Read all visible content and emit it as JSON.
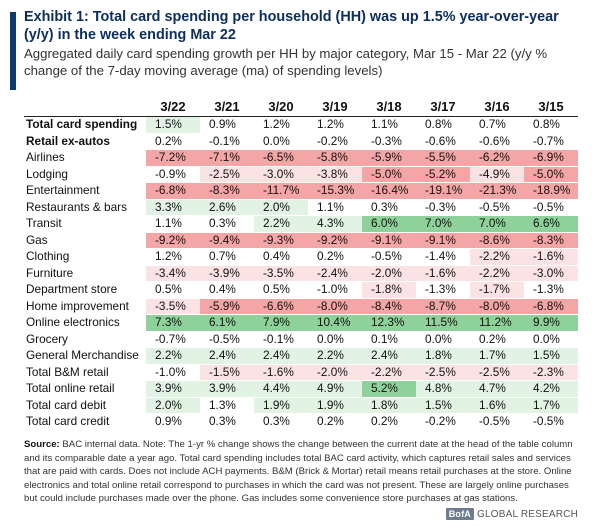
{
  "header": {
    "title": "Exhibit 1: Total card spending per household (HH) was up 1.5% year-over-year (y/y) in the week ending Mar 22",
    "subtitle": "Aggregated daily card spending growth per HH by major category, Mar 15 - Mar 22 (y/y % change of the 7-day moving average (ma) of spending levels)"
  },
  "chart_data": {
    "type": "table",
    "columns": [
      "3/22",
      "3/21",
      "3/20",
      "3/19",
      "3/18",
      "3/17",
      "3/16",
      "3/15"
    ],
    "rows": [
      {
        "label": "Total card spending",
        "bold": true,
        "values": [
          "1.5%",
          "0.9%",
          "1.2%",
          "1.2%",
          "1.1%",
          "0.8%",
          "0.7%",
          "0.8%"
        ]
      },
      {
        "label": "Retail ex-autos",
        "bold": true,
        "values": [
          "0.2%",
          "-0.1%",
          "0.0%",
          "-0.2%",
          "-0.3%",
          "-0.6%",
          "-0.6%",
          "-0.7%"
        ]
      },
      {
        "label": "Airlines",
        "values": [
          "-7.2%",
          "-7.1%",
          "-6.5%",
          "-5.8%",
          "-5.9%",
          "-5.5%",
          "-6.2%",
          "-6.9%"
        ]
      },
      {
        "label": "Lodging",
        "values": [
          "-0.9%",
          "-2.5%",
          "-3.0%",
          "-3.8%",
          "-5.0%",
          "-5.2%",
          "-4.9%",
          "-5.0%"
        ]
      },
      {
        "label": "Entertainment",
        "values": [
          "-6.8%",
          "-8.3%",
          "-11.7%",
          "-15.3%",
          "-16.4%",
          "-19.1%",
          "-21.3%",
          "-18.9%"
        ]
      },
      {
        "label": "Restaurants & bars",
        "values": [
          "3.3%",
          "2.6%",
          "2.0%",
          "1.1%",
          "0.3%",
          "-0.3%",
          "-0.5%",
          "-0.5%"
        ]
      },
      {
        "label": "Transit",
        "values": [
          "1.1%",
          "0.3%",
          "2.2%",
          "4.3%",
          "6.0%",
          "7.0%",
          "7.0%",
          "6.6%"
        ]
      },
      {
        "label": "Gas",
        "values": [
          "-9.2%",
          "-9.4%",
          "-9.3%",
          "-9.2%",
          "-9.1%",
          "-9.1%",
          "-8.6%",
          "-8.3%"
        ]
      },
      {
        "label": "Clothing",
        "values": [
          "1.2%",
          "0.7%",
          "0.4%",
          "0.2%",
          "-0.5%",
          "-1.4%",
          "-2.2%",
          "-1.6%"
        ]
      },
      {
        "label": "Furniture",
        "values": [
          "-3.4%",
          "-3.9%",
          "-3.5%",
          "-2.4%",
          "-2.0%",
          "-1.6%",
          "-2.2%",
          "-3.0%"
        ]
      },
      {
        "label": "Department store",
        "values": [
          "0.5%",
          "0.4%",
          "0.5%",
          "-1.0%",
          "-1.8%",
          "-1.3%",
          "-1.7%",
          "-1.3%"
        ]
      },
      {
        "label": "Home improvement",
        "values": [
          "-3.5%",
          "-5.9%",
          "-6.6%",
          "-8.0%",
          "-8.4%",
          "-8.7%",
          "-8.0%",
          "-6.8%"
        ]
      },
      {
        "label": "Online electronics",
        "values": [
          "7.3%",
          "6.1%",
          "7.9%",
          "10.4%",
          "12.3%",
          "11.5%",
          "11.2%",
          "9.9%"
        ]
      },
      {
        "label": "Grocery",
        "values": [
          "-0.7%",
          "-0.5%",
          "-0.1%",
          "0.0%",
          "0.1%",
          "0.0%",
          "0.2%",
          "0.0%"
        ]
      },
      {
        "label": "General Merchandise",
        "values": [
          "2.2%",
          "2.4%",
          "2.4%",
          "2.2%",
          "2.4%",
          "1.8%",
          "1.7%",
          "1.5%"
        ]
      },
      {
        "label": "Total B&M retail",
        "values": [
          "-1.0%",
          "-1.5%",
          "-1.6%",
          "-2.0%",
          "-2.2%",
          "-2.5%",
          "-2.5%",
          "-2.3%"
        ]
      },
      {
        "label": "Total online retail",
        "values": [
          "3.9%",
          "3.9%",
          "4.4%",
          "4.9%",
          "5.2%",
          "4.8%",
          "4.7%",
          "4.2%"
        ]
      },
      {
        "label": "Total card debit",
        "values": [
          "2.0%",
          "1.3%",
          "1.9%",
          "1.9%",
          "1.8%",
          "1.5%",
          "1.6%",
          "1.7%"
        ]
      },
      {
        "label": "Total card credit",
        "values": [
          "0.9%",
          "0.3%",
          "0.3%",
          "0.2%",
          "0.2%",
          "-0.2%",
          "-0.5%",
          "-0.5%"
        ]
      }
    ]
  },
  "footer": {
    "source_label": "Source:",
    "source_text": " BAC internal data. Note: The 1-yr % change shows the change between the current date at the head of the table column and its comparable date a year ago. Total card spending includes total BAC card activity, which captures retail sales and services that are paid with cards. Does not include ACH payments. B&M (Brick & Mortar) retail means retail purchases at the store. Online electronics and total online retail correspond to purchases in which the card was not present. These are largely online purchases but could include purchases made over the phone. Gas includes some convenience store purchases at gas stations."
  },
  "brand": {
    "logo": "BofA",
    "text": "GLOBAL RESEARCH"
  },
  "colors": {
    "accent": "#0b3a73",
    "title": "#0b2e5e",
    "negative_strong": "#f4a6a6",
    "negative_light": "#fbe3e3",
    "positive_strong": "#8fd19a",
    "positive_light": "#e2f3e3",
    "neutral": "#ffffff"
  }
}
